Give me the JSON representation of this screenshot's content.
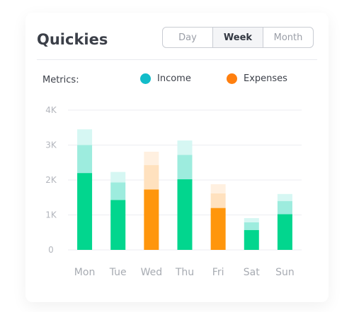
{
  "header": {
    "title": "Quickies",
    "tabs": [
      {
        "label": "Day",
        "active": false
      },
      {
        "label": "Week",
        "active": true
      },
      {
        "label": "Month",
        "active": false
      }
    ]
  },
  "legend": {
    "label": "Metrics:",
    "items": [
      {
        "label": "Income",
        "color": "#12bcc9"
      },
      {
        "label": "Expenses",
        "color": "#ff7f0f"
      }
    ]
  },
  "chart_data": {
    "type": "bar",
    "stacked": true,
    "categories": [
      "Mon",
      "Tue",
      "Wed",
      "Thu",
      "Fri",
      "Sat",
      "Sun"
    ],
    "category_type": [
      "income",
      "income",
      "expenses",
      "income",
      "expenses",
      "income",
      "income"
    ],
    "series": [
      {
        "values": [
          2200,
          1430,
          1730,
          2020,
          1200,
          570,
          1020
        ]
      },
      {
        "values": [
          800,
          500,
          700,
          700,
          420,
          220,
          380
        ]
      },
      {
        "values": [
          450,
          300,
          380,
          410,
          260,
          120,
          200
        ]
      }
    ],
    "yticks": [
      "0",
      "1K",
      "2K",
      "3K",
      "4K"
    ],
    "ylim": [
      0,
      4000
    ],
    "grid": true,
    "colors": {
      "income": [
        "#02d68e",
        "#9decde",
        "#d6f7f3"
      ],
      "expenses": [
        "#ff960c",
        "#ffe1be",
        "#fff0e0"
      ]
    }
  }
}
